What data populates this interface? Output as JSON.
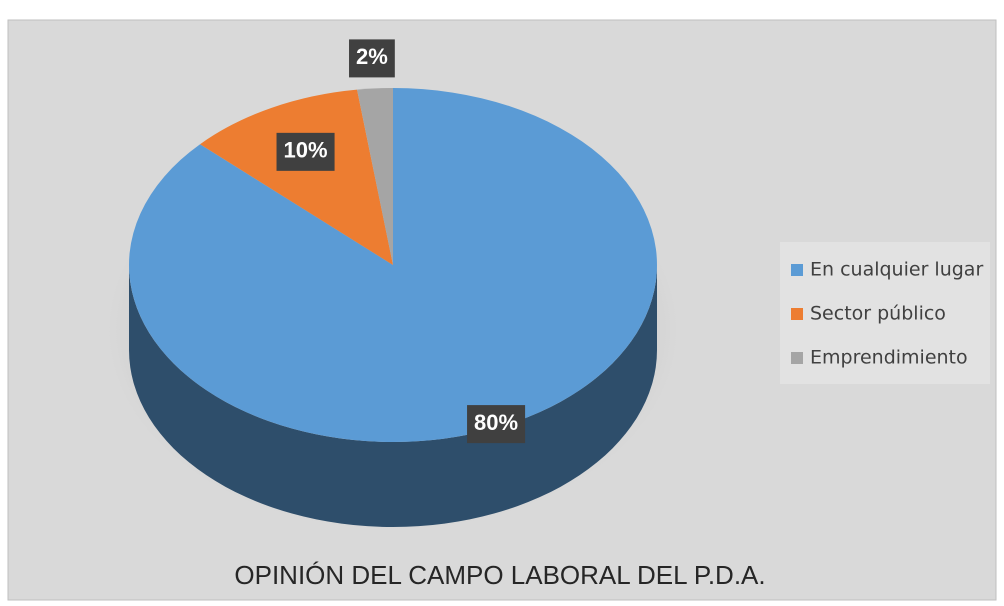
{
  "chart_data": {
    "type": "pie",
    "title": "OPINIÓN DEL CAMPO LABORAL DEL P.D.A.",
    "categories": [
      "En cualquier lugar",
      "Sector público",
      "Emprendimiento"
    ],
    "values": [
      80,
      10,
      2
    ],
    "value_labels": [
      "80%",
      "10%",
      "2%"
    ],
    "colors": [
      "#5b9bd5",
      "#ed7d31",
      "#a5a5a5"
    ],
    "legend": "right"
  }
}
